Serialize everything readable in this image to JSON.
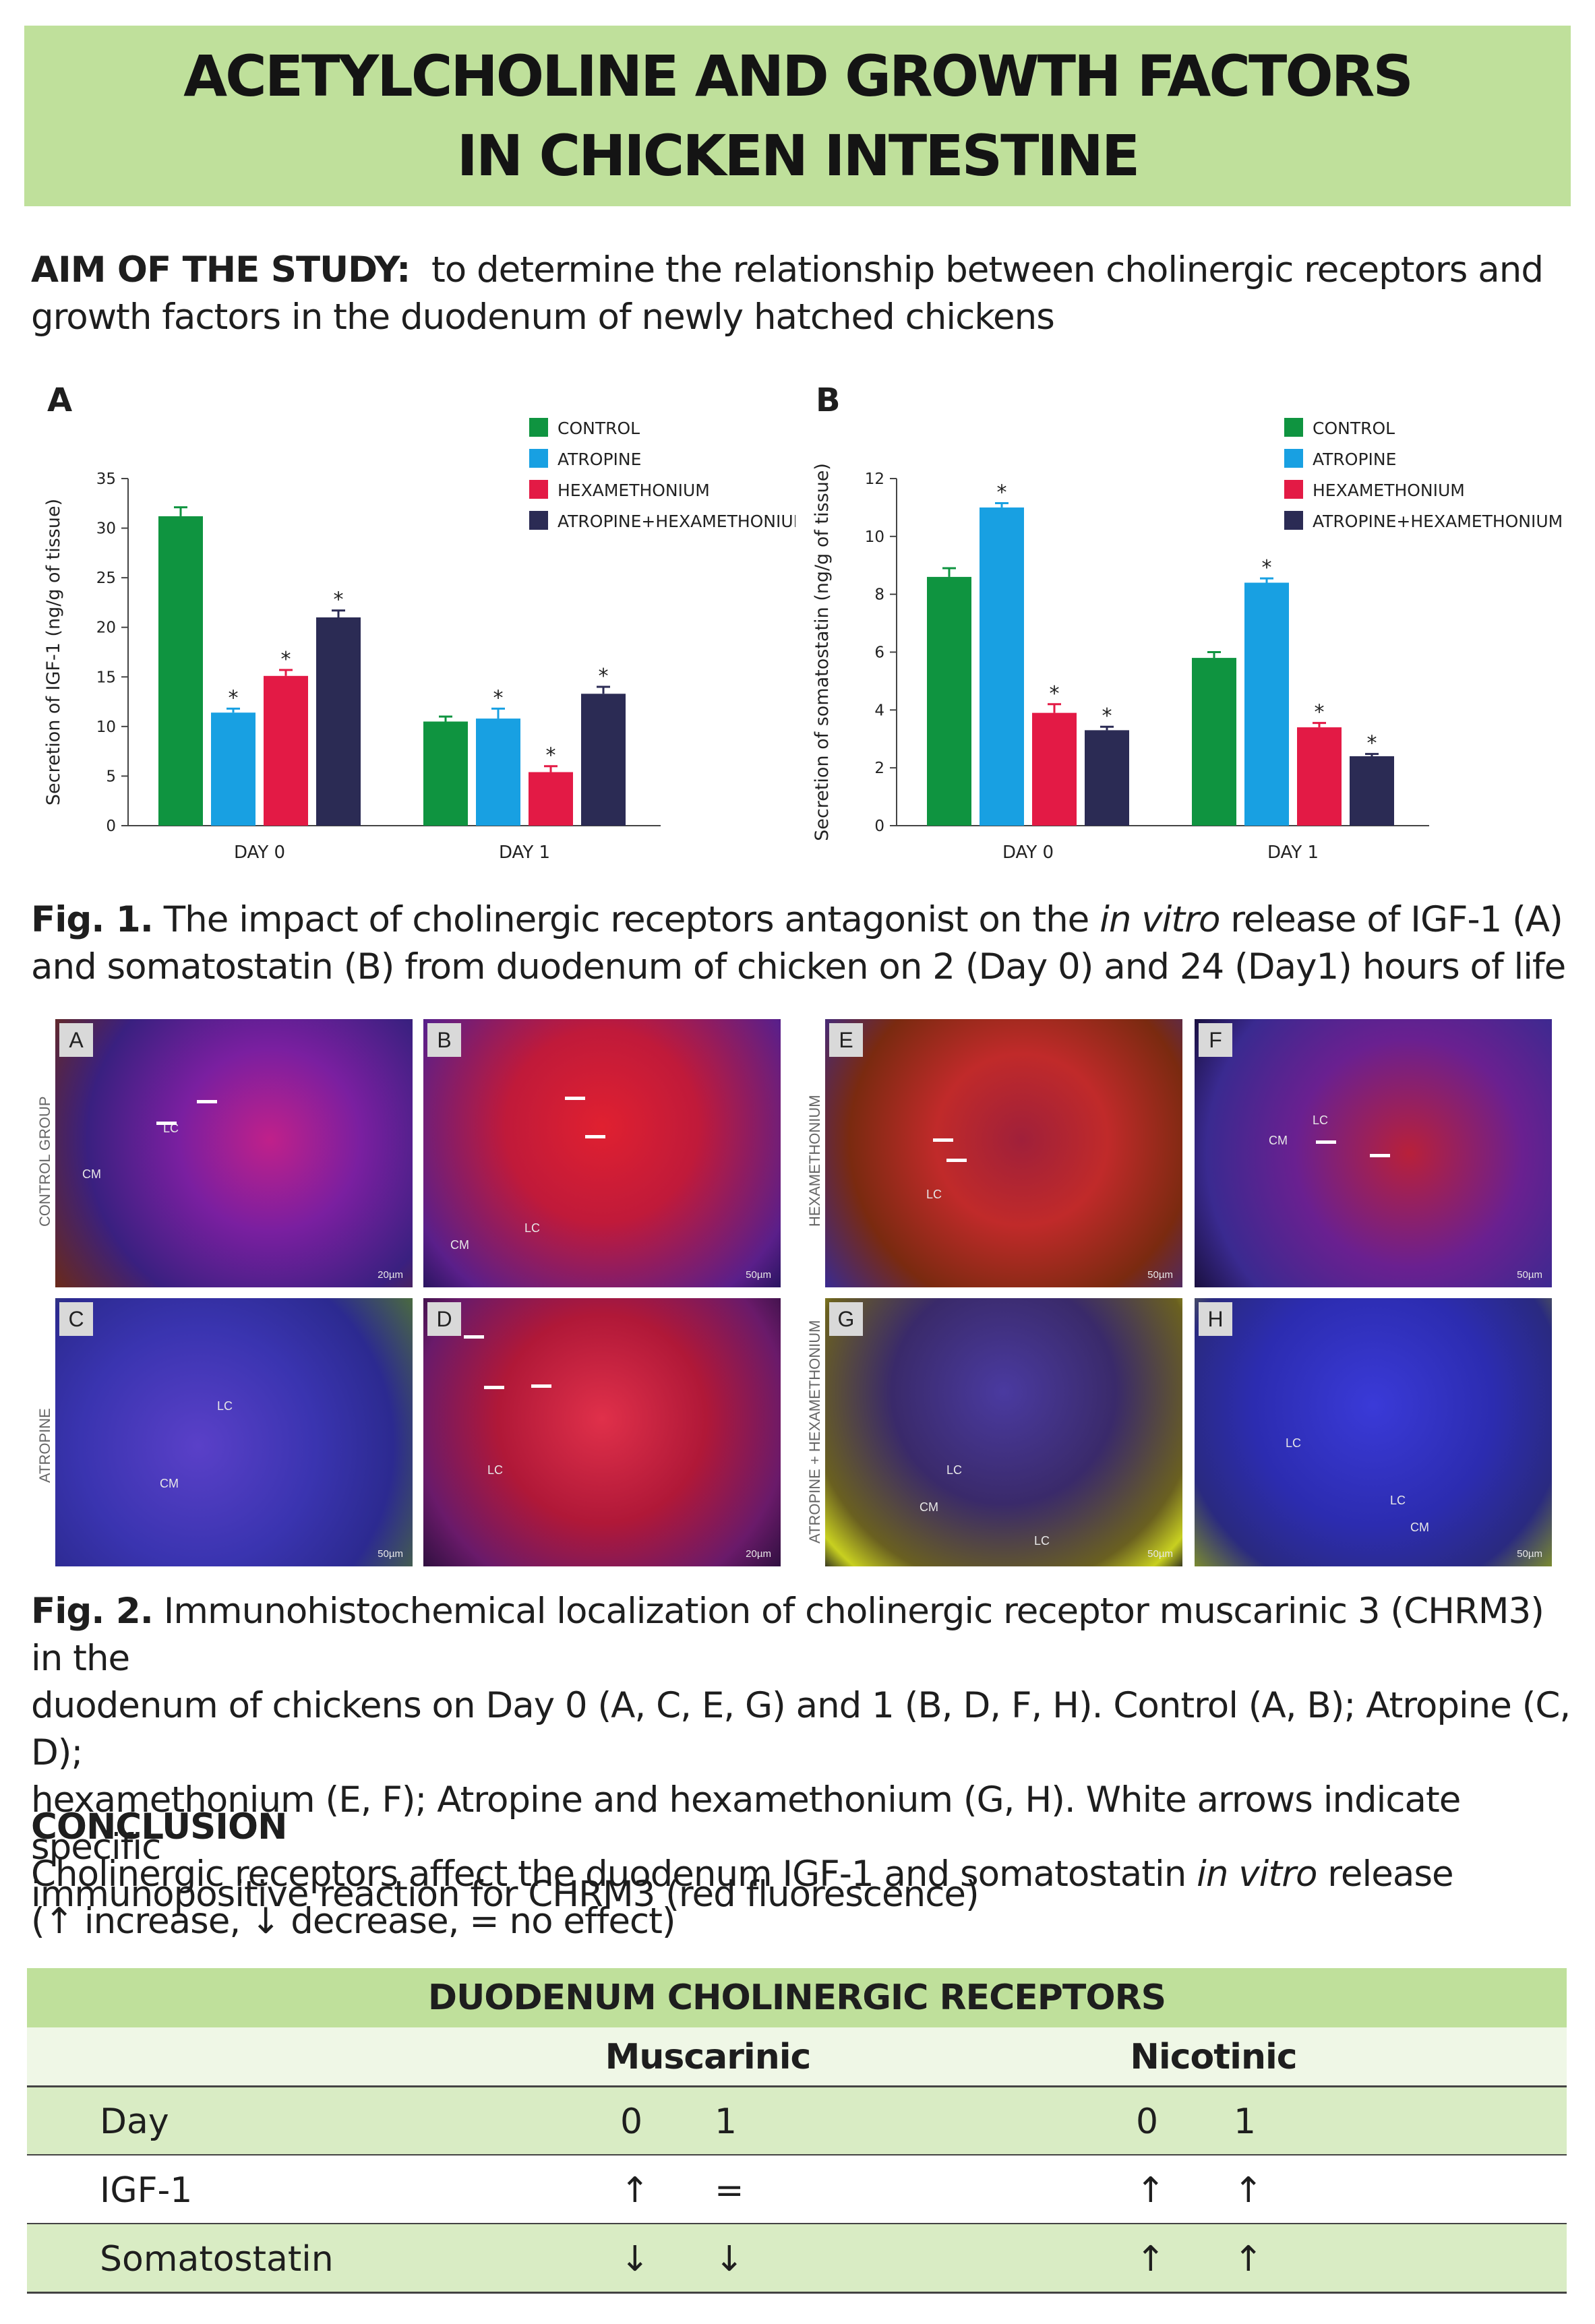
{
  "title": {
    "line1": "ACETYLCHOLINE AND GROWTH FACTORS",
    "line2": "IN CHICKEN INTESTINE"
  },
  "aim": {
    "label": "AIM OF THE STUDY:",
    "text_line1": "to determine the relationship between cholinergic receptors and",
    "text_line2": "growth factors in the duodenum of newly hatched chickens"
  },
  "colors": {
    "banner": "#bfe09b",
    "control": "#0f9440",
    "atropine": "#18a0e2",
    "hexamethonium": "#e31a45",
    "atropine_hexamethonium": "#2b2b54"
  },
  "chart_data": [
    {
      "panel_letter": "A",
      "type": "bar",
      "ylabel": "Secretion of IGF-1 (ng/g of tissue)",
      "ylim": [
        0,
        35
      ],
      "yticks": [
        "0",
        "5",
        "10",
        "15",
        "20",
        "25",
        "30",
        "35"
      ],
      "categories": [
        "DAY 0",
        "DAY 1"
      ],
      "legend": "top-right",
      "series": [
        {
          "name": "CONTROL",
          "values": [
            31.2,
            10.5
          ],
          "errors": [
            0.9,
            0.5
          ],
          "significant": [
            false,
            false
          ]
        },
        {
          "name": "ATROPINE",
          "values": [
            11.4,
            10.8
          ],
          "errors": [
            0.4,
            1.0
          ],
          "significant": [
            true,
            true
          ]
        },
        {
          "name": "HEXAMETHONIUM",
          "values": [
            15.1,
            5.4
          ],
          "errors": [
            0.6,
            0.6
          ],
          "significant": [
            true,
            true
          ]
        },
        {
          "name": "ATROPINE+HEXAMETHONIUM",
          "values": [
            21.0,
            13.3
          ],
          "errors": [
            0.7,
            0.7
          ],
          "significant": [
            true,
            true
          ]
        }
      ]
    },
    {
      "panel_letter": "B",
      "type": "bar",
      "ylabel": "Secretion of somatostatin (ng/g of tissue)",
      "ylim": [
        0,
        12
      ],
      "yticks": [
        "0",
        "2",
        "4",
        "6",
        "8",
        "10",
        "12"
      ],
      "categories": [
        "DAY 0",
        "DAY 1"
      ],
      "legend": "top-right",
      "series": [
        {
          "name": "CONTROL",
          "values": [
            8.6,
            5.8
          ],
          "errors": [
            0.3,
            0.2
          ],
          "significant": [
            false,
            false
          ]
        },
        {
          "name": "ATROPINE",
          "values": [
            11.0,
            8.4
          ],
          "errors": [
            0.15,
            0.15
          ],
          "significant": [
            true,
            true
          ]
        },
        {
          "name": "HEXAMETHONIUM",
          "values": [
            3.9,
            3.4
          ],
          "errors": [
            0.3,
            0.15
          ],
          "significant": [
            true,
            true
          ]
        },
        {
          "name": "ATROPINE+HEXAMETHONIUM",
          "values": [
            3.3,
            2.4
          ],
          "errors": [
            0.12,
            0.08
          ],
          "significant": [
            true,
            true
          ]
        }
      ]
    }
  ],
  "fig1": {
    "label": "Fig. 1.",
    "text_a": "The impact of cholinergic receptors antagonist on the",
    "italic": "in vitro",
    "text_b": "release of IGF-1 (A)",
    "line2": "and somatostatin (B) from duodenum of chicken on 2 (Day 0) and 24 (Day1) hours of life"
  },
  "micrographs": {
    "group_labels": [
      "CONTROL GROUP",
      "ATROPINE",
      "HEXAMETHONIUM",
      "ATROPINE + HEXAMETHONIUM"
    ],
    "panels": [
      {
        "letter": "A",
        "labels": [
          "LC",
          "CM"
        ],
        "scale": "20µm"
      },
      {
        "letter": "B",
        "labels": [
          "LC",
          "CM"
        ],
        "scale": "50µm"
      },
      {
        "letter": "C",
        "labels": [
          "LC",
          "CM"
        ],
        "scale": "50µm"
      },
      {
        "letter": "D",
        "labels": [
          "LC"
        ],
        "scale": "20µm"
      },
      {
        "letter": "E",
        "labels": [
          "LC"
        ],
        "scale": "50µm"
      },
      {
        "letter": "F",
        "labels": [
          "LC",
          "CM"
        ],
        "scale": "50µm"
      },
      {
        "letter": "G",
        "labels": [
          "LC",
          "CM",
          "LC"
        ],
        "scale": "50µm"
      },
      {
        "letter": "H",
        "labels": [
          "LC",
          "LC",
          "CM"
        ],
        "scale": "50µm"
      }
    ]
  },
  "fig2": {
    "label": "Fig. 2.",
    "line1": "Immunohistochemical localization of cholinergic receptor muscarinic 3 (CHRM3) in the",
    "line2": "duodenum of chickens on Day 0 (A, C, E, G) and 1 (B, D, F, H). Control (A, B); Atropine (C, D);",
    "line3": "hexamethonium (E, F); Atropine and hexamethonium (G, H). White arrows indicate specific",
    "line4": "immunopositive reaction for CHRM3 (red fluorescence)"
  },
  "conclusion": {
    "heading": "CONCLUSION",
    "text_a": "Cholinergic receptors affect the duodenum IGF-1 and somatostatin",
    "italic": "in vitro",
    "text_b": "release",
    "line2": "(↑ increase, ↓ decrease, = no effect)"
  },
  "table": {
    "title": "DUODENUM CHOLINERGIC RECEPTORS",
    "col_group_1": "Muscarinic",
    "col_group_2": "Nicotinic",
    "rows": [
      {
        "label": "Day",
        "m0": "0",
        "m1": "1",
        "n0": "0",
        "n1": "1"
      },
      {
        "label": "IGF-1",
        "m0": "↑",
        "m1": "=",
        "n0": "↑",
        "n1": "↑"
      },
      {
        "label": "Somatostatin",
        "m0": "↓",
        "m1": "↓",
        "n0": "↑",
        "n1": "↑"
      }
    ]
  }
}
